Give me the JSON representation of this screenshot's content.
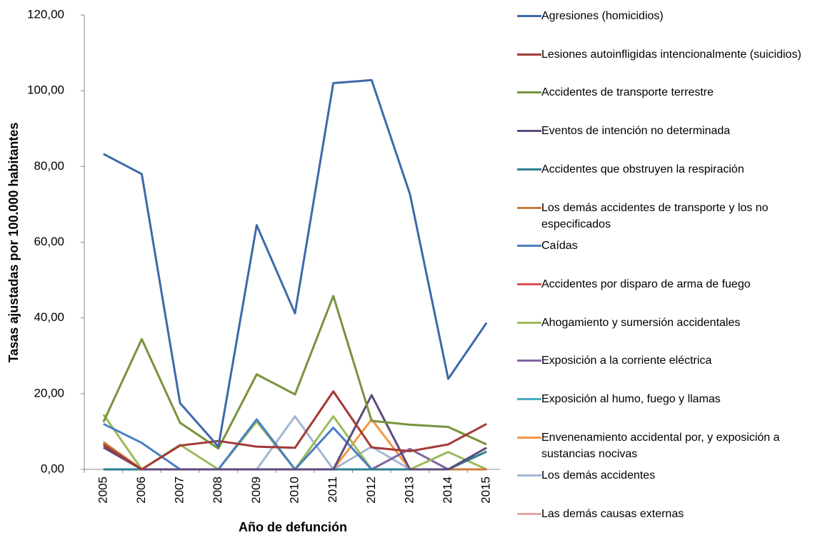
{
  "chart_data": {
    "type": "line",
    "x_label": "Año de defunción",
    "y_label": "Tasas ajustadas por 100.000 habitantes",
    "categories": [
      "2005",
      "2006",
      "2007",
      "2008",
      "2009",
      "2010",
      "2011",
      "2012",
      "2013",
      "2014",
      "2015"
    ],
    "ylim": [
      0,
      120
    ],
    "yticks": [
      {
        "value": 0,
        "label": "0,00"
      },
      {
        "value": 20,
        "label": "20,00"
      },
      {
        "value": 40,
        "label": "40,00"
      },
      {
        "value": 60,
        "label": "60,00"
      },
      {
        "value": 80,
        "label": "80,00"
      },
      {
        "value": 100,
        "label": "100,00"
      },
      {
        "value": 120,
        "label": "120,00"
      }
    ],
    "legend": "right",
    "series": [
      {
        "name": "Agresiones (homicidios)",
        "color": "#3d6aa8",
        "values": [
          83.3,
          78,
          17.5,
          6,
          64.5,
          41.2,
          102,
          102.8,
          72.7,
          23.9,
          38.7
        ]
      },
      {
        "name": "Lesiones autoinfligidas intencionalmente (suicidios)",
        "color": "#a33a36",
        "values": [
          6.5,
          0,
          6.3,
          7.5,
          6,
          5.7,
          20.6,
          5.8,
          4.8,
          6.6,
          12
        ]
      },
      {
        "name": "Accidentes de transporte terrestre",
        "color": "#77933c",
        "values": [
          12.5,
          34.4,
          12.3,
          5.5,
          25.1,
          19.8,
          45.8,
          12.8,
          11.8,
          11.2,
          6.6
        ]
      },
      {
        "name": "Eventos de intención no determinada",
        "color": "#5f4a7c",
        "values": [
          5.8,
          0,
          0,
          0,
          0,
          0,
          0,
          19.6,
          0,
          0,
          5.7
        ]
      },
      {
        "name": "Accidentes que obstruyen la respiración",
        "color": "#2e7d8f",
        "values": [
          0,
          0,
          0,
          0,
          0,
          0,
          0,
          0,
          0,
          0,
          4.7
        ]
      },
      {
        "name": "Los demás accidentes de transporte y los no especificados",
        "color": "#c87d3a",
        "values": [
          7.2,
          0,
          0,
          0,
          0,
          0,
          0,
          0,
          0,
          0,
          0
        ]
      },
      {
        "name": "Caídas",
        "color": "#4a7fc1",
        "values": [
          12,
          7,
          0,
          0,
          13.2,
          0,
          11,
          0,
          0,
          0,
          0
        ]
      },
      {
        "name": "Accidentes por disparo de arma de fuego",
        "color": "#d9534f",
        "values": [
          0,
          0,
          0,
          0,
          0,
          0,
          0,
          0,
          0,
          0,
          0
        ]
      },
      {
        "name": "Ahogamiento y sumersión accidentales",
        "color": "#9bbb59",
        "values": [
          14.5,
          0,
          6.5,
          0,
          12.6,
          0,
          14,
          0,
          0,
          4.6,
          0
        ]
      },
      {
        "name": "Exposición a la corriente eléctrica",
        "color": "#8064a2",
        "values": [
          0,
          0,
          0,
          0,
          0,
          0,
          0,
          0,
          5.4,
          0,
          0
        ]
      },
      {
        "name": "Exposición al humo, fuego y llamas",
        "color": "#4bacc6",
        "values": [
          0,
          0,
          0,
          0,
          0,
          0,
          0,
          0,
          0,
          0,
          0
        ]
      },
      {
        "name": "Envenenamiento accidental por, y exposición a sustancias nocivas",
        "color": "#f79646",
        "values": [
          6.8,
          0,
          0,
          0,
          0,
          0,
          0,
          13.2,
          0,
          0,
          0
        ]
      },
      {
        "name": "Los demás accidentes",
        "color": "#a5b6d6",
        "values": [
          0,
          0,
          0,
          0,
          0,
          14,
          0,
          6,
          0,
          0,
          0
        ]
      },
      {
        "name": "Las demás causas externas",
        "color": "#e6a6a6",
        "values": [
          0,
          0,
          0,
          0,
          0,
          0,
          0,
          0,
          0,
          0,
          0
        ]
      }
    ]
  }
}
